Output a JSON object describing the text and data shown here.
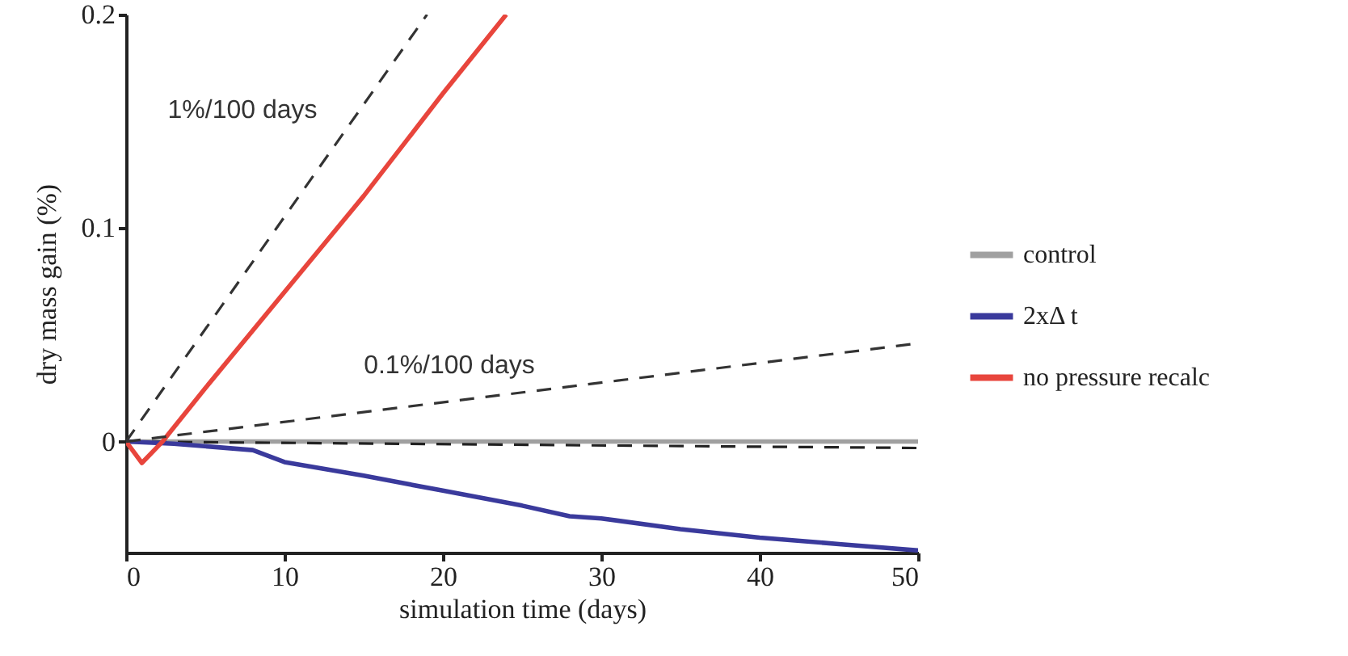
{
  "chart_data": {
    "type": "line",
    "xlabel": "simulation time (days)",
    "ylabel": "dry mass gain (%)",
    "xlim": [
      0,
      50
    ],
    "xticks": [
      0,
      10,
      20,
      30,
      40,
      50
    ],
    "ylim": [
      -0.052,
      0.2
    ],
    "yticks": [
      0,
      0.1,
      0.2
    ],
    "grid": false,
    "legend": "right",
    "marker": "none",
    "line_style": "solid",
    "annotations": [
      "1%/100 days",
      "0.1%/100 days"
    ],
    "series": [
      {
        "name": "control",
        "color": "#a0a0a0",
        "x": [
          0,
          50
        ],
        "values": [
          0,
          0
        ]
      },
      {
        "color": "#222222",
        "line_style": "dashed",
        "x": [
          0,
          50
        ],
        "values": [
          0,
          -0.003
        ]
      },
      {
        "name": "2xΔ t",
        "color": "#3a3a9c",
        "x": [
          0,
          3,
          8,
          10,
          15,
          20,
          25,
          28,
          30,
          35,
          40,
          45,
          50
        ],
        "values": [
          0,
          -0.001,
          -0.004,
          -0.0096,
          -0.016,
          -0.023,
          -0.03,
          -0.035,
          -0.036,
          -0.041,
          -0.045,
          -0.048,
          -0.051
        ]
      },
      {
        "name": "no pressure recalc",
        "color": "#e8453c",
        "x": [
          0,
          1,
          2.3,
          5,
          10,
          15,
          20,
          24
        ],
        "values": [
          0,
          -0.01,
          0,
          0.025,
          0.07,
          0.115,
          0.163,
          0.2
        ]
      },
      {
        "color": "#333333",
        "line_style": "dashed",
        "x": [
          0,
          19
        ],
        "values": [
          0,
          0.2
        ]
      },
      {
        "color": "#333333",
        "line_style": "dashed",
        "x": [
          0,
          50
        ],
        "values": [
          0,
          0.046
        ]
      }
    ]
  }
}
